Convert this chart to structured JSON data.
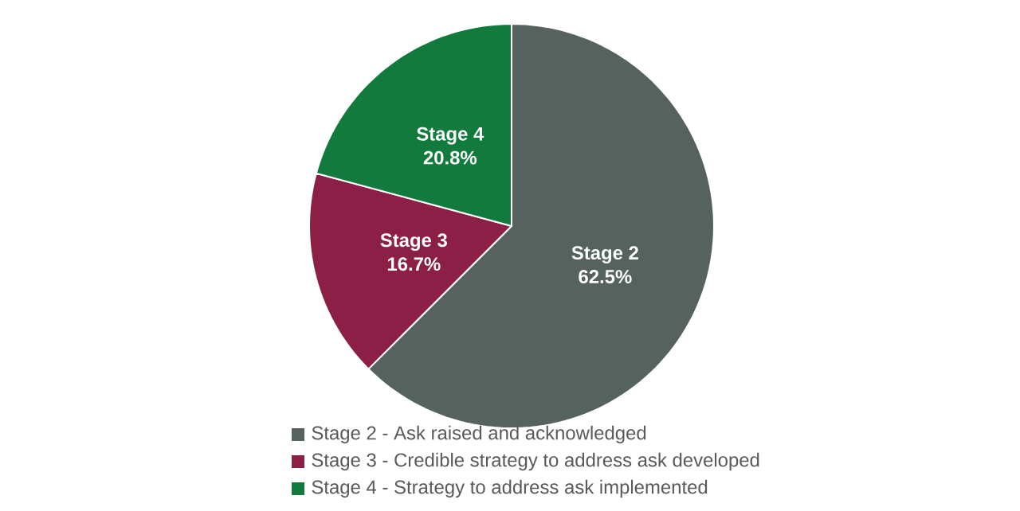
{
  "chart_data": {
    "type": "pie",
    "categories": [
      "Stage 2 - Ask raised and acknowledged",
      "Stage 3 - Credible strategy to address ask developed",
      "Stage 4 - Strategy to address ask implemented"
    ],
    "values": [
      62.5,
      16.7,
      20.8
    ],
    "value_labels": [
      "62.5%",
      "16.7%",
      "20.8%"
    ],
    "annotations": [
      "Stage 2",
      "Stage 3",
      "Stage 4"
    ],
    "colors": [
      "#56625e",
      "#8b1f45",
      "#117a3c"
    ],
    "legend": "bottom"
  }
}
